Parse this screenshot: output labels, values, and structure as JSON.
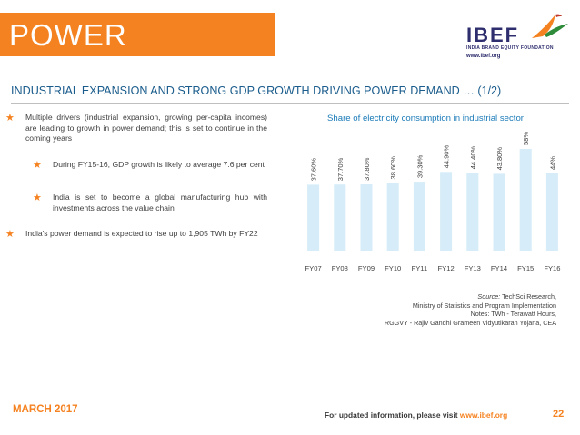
{
  "header": {
    "title": "POWER",
    "logo_word": "IBEF",
    "logo_sub": "INDIA BRAND EQUITY FOUNDATION",
    "logo_url": "www.ibef.org"
  },
  "subtitle": "INDUSTRIAL EXPANSION AND STRONG GDP GROWTH DRIVING POWER DEMAND … (1/2)",
  "bullets": [
    "Multiple drivers (industrial expansion, growing per-capita incomes) are leading to growth in power demand; this is set to continue in the coming years",
    "During FY15-16, GDP growth is likely to average 7.6 per cent",
    "India is set to become a global manufacturing hub with investments across the value chain",
    "India's power demand is expected to rise up to 1,905 TWh by FY22"
  ],
  "chart_data": {
    "type": "bar",
    "title": "Share of electricity consumption in industrial sector",
    "categories": [
      "FY07",
      "FY08",
      "FY09",
      "FY10",
      "FY11",
      "FY12",
      "FY13",
      "FY14",
      "FY15",
      "FY16"
    ],
    "values": [
      37.6,
      37.7,
      37.8,
      38.6,
      39.3,
      44.9,
      44.4,
      43.8,
      58,
      44
    ],
    "labels": [
      "37.60%",
      "37.70%",
      "37.80%",
      "38.60%",
      "39.30%",
      "44.90%",
      "44.40%",
      "43.80%",
      "58%",
      "44%"
    ],
    "bar_color": "#d6ecf8",
    "ylim": [
      0,
      58
    ]
  },
  "source": {
    "label": "Source:",
    "line1": " TechSci Research,",
    "line2": "Ministry of Statistics and Program Implementation",
    "line3": "Notes: TWh - Terawatt Hours,",
    "line4": "RGGVY - Rajiv Gandhi Grameen Vidyutikaran Yojana, CEA"
  },
  "footer": {
    "date": "MARCH 2017",
    "info_prefix": "For updated information, please visit ",
    "info_url": "www.ibef.org",
    "page": "22"
  },
  "colors": {
    "accent": "#f58220",
    "subtitle": "#1a5c8c",
    "chart_title": "#1a7ab8"
  }
}
